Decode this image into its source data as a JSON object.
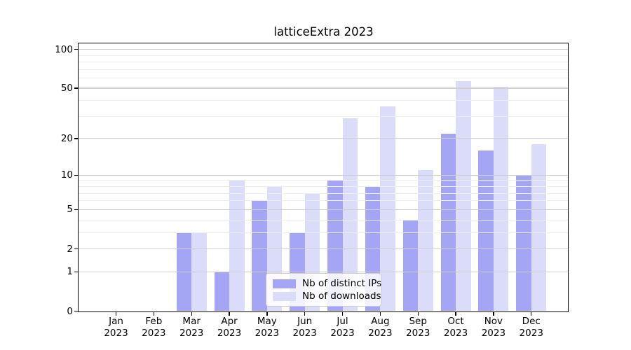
{
  "title": "latticeExtra 2023",
  "chart_data": {
    "type": "bar",
    "title": "latticeExtra 2023",
    "scale": "log1p",
    "categories": [
      "Jan",
      "Feb",
      "Mar",
      "Apr",
      "May",
      "Jun",
      "Jul",
      "Aug",
      "Sep",
      "Oct",
      "Nov",
      "Dec"
    ],
    "year": "2023",
    "series": [
      {
        "name": "Nb of distinct IPs",
        "color": "#A5A5F6",
        "values": [
          0,
          0,
          3,
          1,
          6,
          3,
          9,
          8,
          4,
          22,
          16,
          10
        ]
      },
      {
        "name": "Nb of downloads",
        "color": "#DBDBFA",
        "values": [
          0,
          0,
          3,
          9,
          8,
          7,
          29,
          36,
          11,
          57,
          51,
          18
        ]
      }
    ],
    "y_major_ticks": [
      0,
      1,
      2,
      5,
      10,
      20,
      50,
      100
    ],
    "y_minor_ticks": [
      3,
      4,
      6,
      7,
      8,
      9,
      30,
      40,
      60,
      70,
      80,
      90
    ],
    "ylim": [
      0,
      110
    ],
    "xlabel": "",
    "ylabel": "",
    "grid": true,
    "legend_position": "lower center"
  },
  "colors": {
    "major_grid": "#CFCFCF",
    "minor_grid": "#EDEDED",
    "axis": "#000000",
    "legend_border": "#CCCCCC"
  }
}
